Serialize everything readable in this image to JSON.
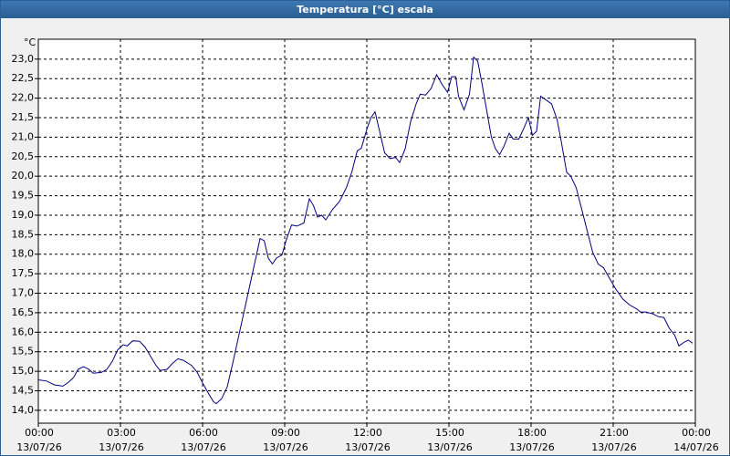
{
  "title": "Temperatura [°C] escala",
  "chart_data": {
    "type": "line",
    "y_unit": "°C",
    "color": "#000080",
    "grid": true,
    "x": [
      0.0,
      0.3,
      0.6,
      0.9,
      1.1,
      1.3,
      1.45,
      1.65,
      1.85,
      2.0,
      2.3,
      2.5,
      2.7,
      2.9,
      3.1,
      3.25,
      3.45,
      3.7,
      3.9,
      4.1,
      4.3,
      4.45,
      4.7,
      4.9,
      5.1,
      5.3,
      5.6,
      5.8,
      6.0,
      6.2,
      6.4,
      6.5,
      6.7,
      6.9,
      7.1,
      7.35,
      7.6,
      7.85,
      8.1,
      8.25,
      8.4,
      8.55,
      8.7,
      8.9,
      9.05,
      9.25,
      9.45,
      9.7,
      9.9,
      10.05,
      10.2,
      10.35,
      10.5,
      10.75,
      11.0,
      11.25,
      11.45,
      11.65,
      11.8,
      12.0,
      12.15,
      12.3,
      12.45,
      12.65,
      12.85,
      13.05,
      13.2,
      13.4,
      13.6,
      13.8,
      13.95,
      14.15,
      14.35,
      14.55,
      14.75,
      14.95,
      15.1,
      15.25,
      15.35,
      15.55,
      15.75,
      15.9,
      16.05,
      16.2,
      16.4,
      16.55,
      16.7,
      16.85,
      17.0,
      17.2,
      17.35,
      17.55,
      17.75,
      17.9,
      18.05,
      18.2,
      18.35,
      18.55,
      18.75,
      18.95,
      19.1,
      19.3,
      19.45,
      19.65,
      19.85,
      20.05,
      20.25,
      20.45,
      20.65,
      20.85,
      21.1,
      21.35,
      21.6,
      21.85,
      22.0,
      22.2,
      22.45,
      22.65,
      22.85,
      23.05,
      23.25,
      23.4,
      23.6,
      23.75,
      23.9
    ],
    "values": [
      14.78,
      14.75,
      14.65,
      14.62,
      14.72,
      14.85,
      15.05,
      15.12,
      15.05,
      14.95,
      14.97,
      15.05,
      15.25,
      15.55,
      15.68,
      15.65,
      15.78,
      15.77,
      15.62,
      15.38,
      15.15,
      15.02,
      15.05,
      15.2,
      15.32,
      15.28,
      15.15,
      14.98,
      14.7,
      14.45,
      14.22,
      14.17,
      14.3,
      14.6,
      15.2,
      16.0,
      16.8,
      17.6,
      18.4,
      18.35,
      17.9,
      17.75,
      17.9,
      17.98,
      18.35,
      18.75,
      18.72,
      18.8,
      19.42,
      19.25,
      18.95,
      19.0,
      18.88,
      19.15,
      19.35,
      19.7,
      20.1,
      20.65,
      20.72,
      21.2,
      21.5,
      21.65,
      21.2,
      20.6,
      20.45,
      20.48,
      20.35,
      20.7,
      21.4,
      21.85,
      22.1,
      22.08,
      22.25,
      22.6,
      22.35,
      22.15,
      22.55,
      22.55,
      22.05,
      21.7,
      22.1,
      23.05,
      22.95,
      22.4,
      21.6,
      21.0,
      20.7,
      20.55,
      20.75,
      21.1,
      20.95,
      20.95,
      21.25,
      21.5,
      21.05,
      21.15,
      22.05,
      21.95,
      21.85,
      21.45,
      20.9,
      20.1,
      20.0,
      19.7,
      19.15,
      18.6,
      18.05,
      17.75,
      17.65,
      17.4,
      17.1,
      16.85,
      16.7,
      16.6,
      16.52,
      16.52,
      16.47,
      16.4,
      16.38,
      16.1,
      15.92,
      15.65,
      15.75,
      15.8,
      15.72
    ],
    "xlim": [
      0,
      24
    ],
    "xticks": [
      {
        "value": 0,
        "label": "00:00\n13/07/26"
      },
      {
        "value": 3,
        "label": "03:00\n13/07/26"
      },
      {
        "value": 6,
        "label": "06:00\n13/07/26"
      },
      {
        "value": 9,
        "label": "09:00\n13/07/26"
      },
      {
        "value": 12,
        "label": "12:00\n13/07/26"
      },
      {
        "value": 15,
        "label": "15:00\n13/07/26"
      },
      {
        "value": 18,
        "label": "18:00\n13/07/26"
      },
      {
        "value": 21,
        "label": "21:00\n13/07/26"
      },
      {
        "value": 24,
        "label": "00:00\n14/07/26"
      }
    ],
    "ylim": [
      13.67,
      23.51
    ],
    "yticks": [
      {
        "value": 14,
        "label": "14,0"
      },
      {
        "value": 14.5,
        "label": "14,5"
      },
      {
        "value": 15,
        "label": "15,0"
      },
      {
        "value": 15.5,
        "label": "15,5"
      },
      {
        "value": 16,
        "label": "16,0"
      },
      {
        "value": 16.5,
        "label": "16,5"
      },
      {
        "value": 17,
        "label": "17,0"
      },
      {
        "value": 17.5,
        "label": "17,5"
      },
      {
        "value": 18,
        "label": "18,0"
      },
      {
        "value": 18.5,
        "label": "18,5"
      },
      {
        "value": 19,
        "label": "19,0"
      },
      {
        "value": 19.5,
        "label": "19,5"
      },
      {
        "value": 20,
        "label": "20,0"
      },
      {
        "value": 20.5,
        "label": "20,5"
      },
      {
        "value": 21,
        "label": "21,0"
      },
      {
        "value": 21.5,
        "label": "21,5"
      },
      {
        "value": 22,
        "label": "22,0"
      },
      {
        "value": 22.5,
        "label": "22,5"
      },
      {
        "value": 23,
        "label": "23,0"
      }
    ]
  }
}
